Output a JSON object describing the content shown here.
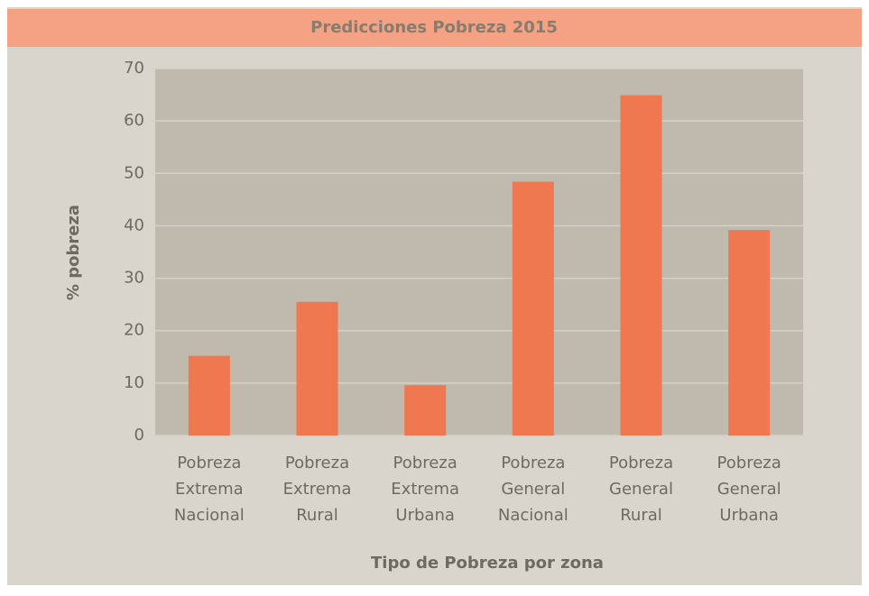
{
  "chart_data": {
    "type": "bar",
    "title": "Predicciones Pobreza 2015",
    "x_label": "Tipo de Pobreza por zona",
    "y_label": "% pobreza",
    "categories": [
      "Pobreza Extrema Nacional",
      "Pobreza Extrema Rural",
      "Pobreza Extrema Urbana",
      "Pobreza General Nacional",
      "Pobreza General Rural",
      "Pobreza General Urbana"
    ],
    "values": [
      15.2,
      25.5,
      9.6,
      48.4,
      64.9,
      39.2
    ],
    "color": "#f07850",
    "ylim": [
      0,
      70
    ],
    "yticks": [
      0,
      10,
      20,
      30,
      40,
      50,
      60,
      70
    ],
    "grid": true
  }
}
